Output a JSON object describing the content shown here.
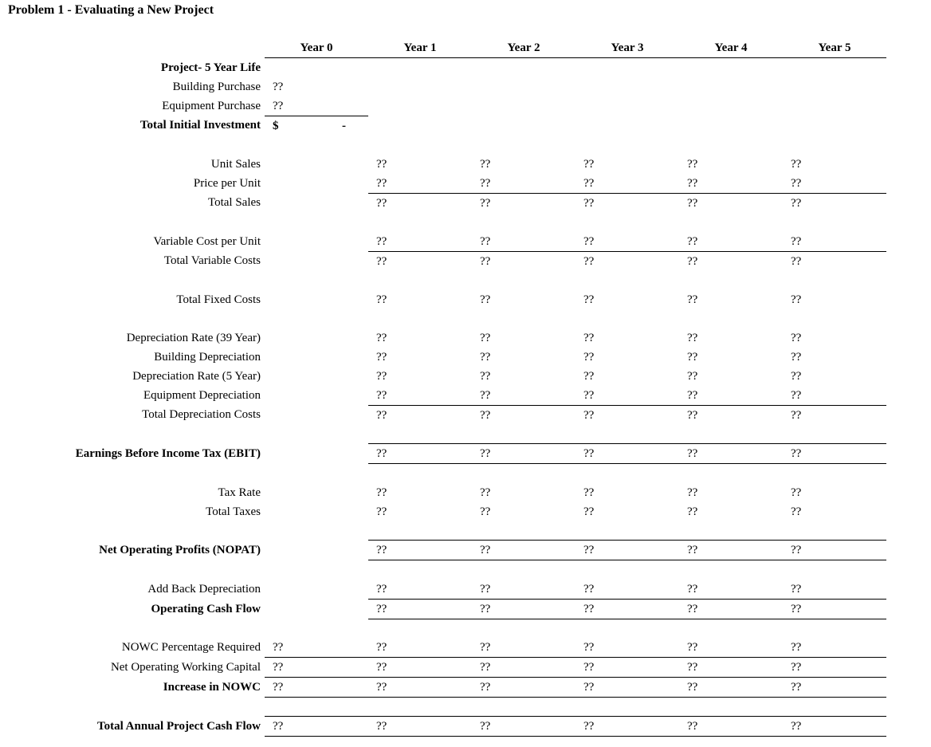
{
  "title": "Problem 1 - Evaluating a New Project",
  "colors": {
    "text": "#000000",
    "background": "#ffffff",
    "rule": "#000000"
  },
  "table": {
    "year_headers": [
      "Year 0",
      "Year 1",
      "Year 2",
      "Year 3",
      "Year 4",
      "Year 5"
    ],
    "rows": [
      {
        "label": "Project- 5 Year Life",
        "bold": true,
        "values": [
          "",
          "",
          "",
          "",
          "",
          ""
        ]
      },
      {
        "label": "Building Purchase",
        "bold": false,
        "values": [
          "??",
          "",
          "",
          "",
          "",
          ""
        ]
      },
      {
        "label": "Equipment Purchase",
        "bold": false,
        "values": [
          "??",
          "",
          "",
          "",
          "",
          ""
        ],
        "bottom": "y0"
      },
      {
        "label": "Total Initial Investment",
        "bold": true,
        "currency": "$",
        "amount": "-",
        "values": [
          "",
          "",
          "",
          "",
          "",
          ""
        ]
      },
      {
        "label": "",
        "bold": false,
        "values": [
          "",
          "",
          "",
          "",
          "",
          ""
        ]
      },
      {
        "label": "Unit Sales",
        "bold": false,
        "values": [
          "",
          "??",
          "??",
          "??",
          "??",
          "??"
        ]
      },
      {
        "label": "Price per Unit",
        "bold": false,
        "values": [
          "",
          "??",
          "??",
          "??",
          "??",
          "??"
        ],
        "bottom": "y15"
      },
      {
        "label": "Total Sales",
        "bold": false,
        "values": [
          "",
          "??",
          "??",
          "??",
          "??",
          "??"
        ]
      },
      {
        "label": "",
        "bold": false,
        "values": [
          "",
          "",
          "",
          "",
          "",
          ""
        ]
      },
      {
        "label": "Variable Cost per Unit",
        "bold": false,
        "values": [
          "",
          "??",
          "??",
          "??",
          "??",
          "??"
        ],
        "bottom": "y15"
      },
      {
        "label": "Total Variable Costs",
        "bold": false,
        "values": [
          "",
          "??",
          "??",
          "??",
          "??",
          "??"
        ]
      },
      {
        "label": "",
        "bold": false,
        "values": [
          "",
          "",
          "",
          "",
          "",
          ""
        ]
      },
      {
        "label": "Total Fixed Costs",
        "bold": false,
        "values": [
          "",
          "??",
          "??",
          "??",
          "??",
          "??"
        ]
      },
      {
        "label": "",
        "bold": false,
        "values": [
          "",
          "",
          "",
          "",
          "",
          ""
        ]
      },
      {
        "label": "Depreciation Rate (39 Year)",
        "bold": false,
        "values": [
          "",
          "??",
          "??",
          "??",
          "??",
          "??"
        ]
      },
      {
        "label": "Building Depreciation",
        "bold": false,
        "values": [
          "",
          "??",
          "??",
          "??",
          "??",
          "??"
        ]
      },
      {
        "label": "Depreciation Rate (5 Year)",
        "bold": false,
        "values": [
          "",
          "??",
          "??",
          "??",
          "??",
          "??"
        ]
      },
      {
        "label": "Equipment Depreciation",
        "bold": false,
        "values": [
          "",
          "??",
          "??",
          "??",
          "??",
          "??"
        ],
        "bottom": "y15"
      },
      {
        "label": "Total Depreciation Costs",
        "bold": false,
        "values": [
          "",
          "??",
          "??",
          "??",
          "??",
          "??"
        ]
      },
      {
        "label": "",
        "bold": false,
        "values": [
          "",
          "",
          "",
          "",
          "",
          ""
        ]
      },
      {
        "label": "Earnings Before Income Tax (EBIT)",
        "bold": true,
        "values": [
          "",
          "??",
          "??",
          "??",
          "??",
          "??"
        ],
        "top": "y15",
        "bottom": "y15"
      },
      {
        "label": "",
        "bold": false,
        "values": [
          "",
          "",
          "",
          "",
          "",
          ""
        ]
      },
      {
        "label": "Tax Rate",
        "bold": false,
        "values": [
          "",
          "??",
          "??",
          "??",
          "??",
          "??"
        ]
      },
      {
        "label": "Total Taxes",
        "bold": false,
        "values": [
          "",
          "??",
          "??",
          "??",
          "??",
          "??"
        ]
      },
      {
        "label": "",
        "bold": false,
        "values": [
          "",
          "",
          "",
          "",
          "",
          ""
        ]
      },
      {
        "label": "Net Operating Profits (NOPAT)",
        "bold": true,
        "values": [
          "",
          "??",
          "??",
          "??",
          "??",
          "??"
        ],
        "top": "y15",
        "bottom": "y15"
      },
      {
        "label": "",
        "bold": false,
        "values": [
          "",
          "",
          "",
          "",
          "",
          ""
        ]
      },
      {
        "label": "Add Back Depreciation",
        "bold": false,
        "values": [
          "",
          "??",
          "??",
          "??",
          "??",
          "??"
        ],
        "bottom": "y15"
      },
      {
        "label": "Operating Cash Flow",
        "bold": true,
        "values": [
          "",
          "??",
          "??",
          "??",
          "??",
          "??"
        ],
        "bottom": "y15"
      },
      {
        "label": "",
        "bold": false,
        "values": [
          "",
          "",
          "",
          "",
          "",
          ""
        ]
      },
      {
        "label": "NOWC Percentage Required",
        "bold": false,
        "values": [
          "??",
          "??",
          "??",
          "??",
          "??",
          "??"
        ],
        "bottom": "all"
      },
      {
        "label": "Net Operating Working Capital",
        "bold": false,
        "values": [
          "??",
          "??",
          "??",
          "??",
          "??",
          "??"
        ],
        "bottom": "all"
      },
      {
        "label": "Increase in NOWC",
        "bold": true,
        "values": [
          "??",
          "??",
          "??",
          "??",
          "??",
          "??"
        ],
        "bottom": "all"
      },
      {
        "label": "",
        "bold": false,
        "values": [
          "",
          "",
          "",
          "",
          "",
          ""
        ],
        "bottom": "all"
      },
      {
        "label": "Total Annual Project Cash Flow",
        "bold": true,
        "values": [
          "??",
          "??",
          "??",
          "??",
          "??",
          "??"
        ],
        "bottom": "all"
      }
    ]
  }
}
